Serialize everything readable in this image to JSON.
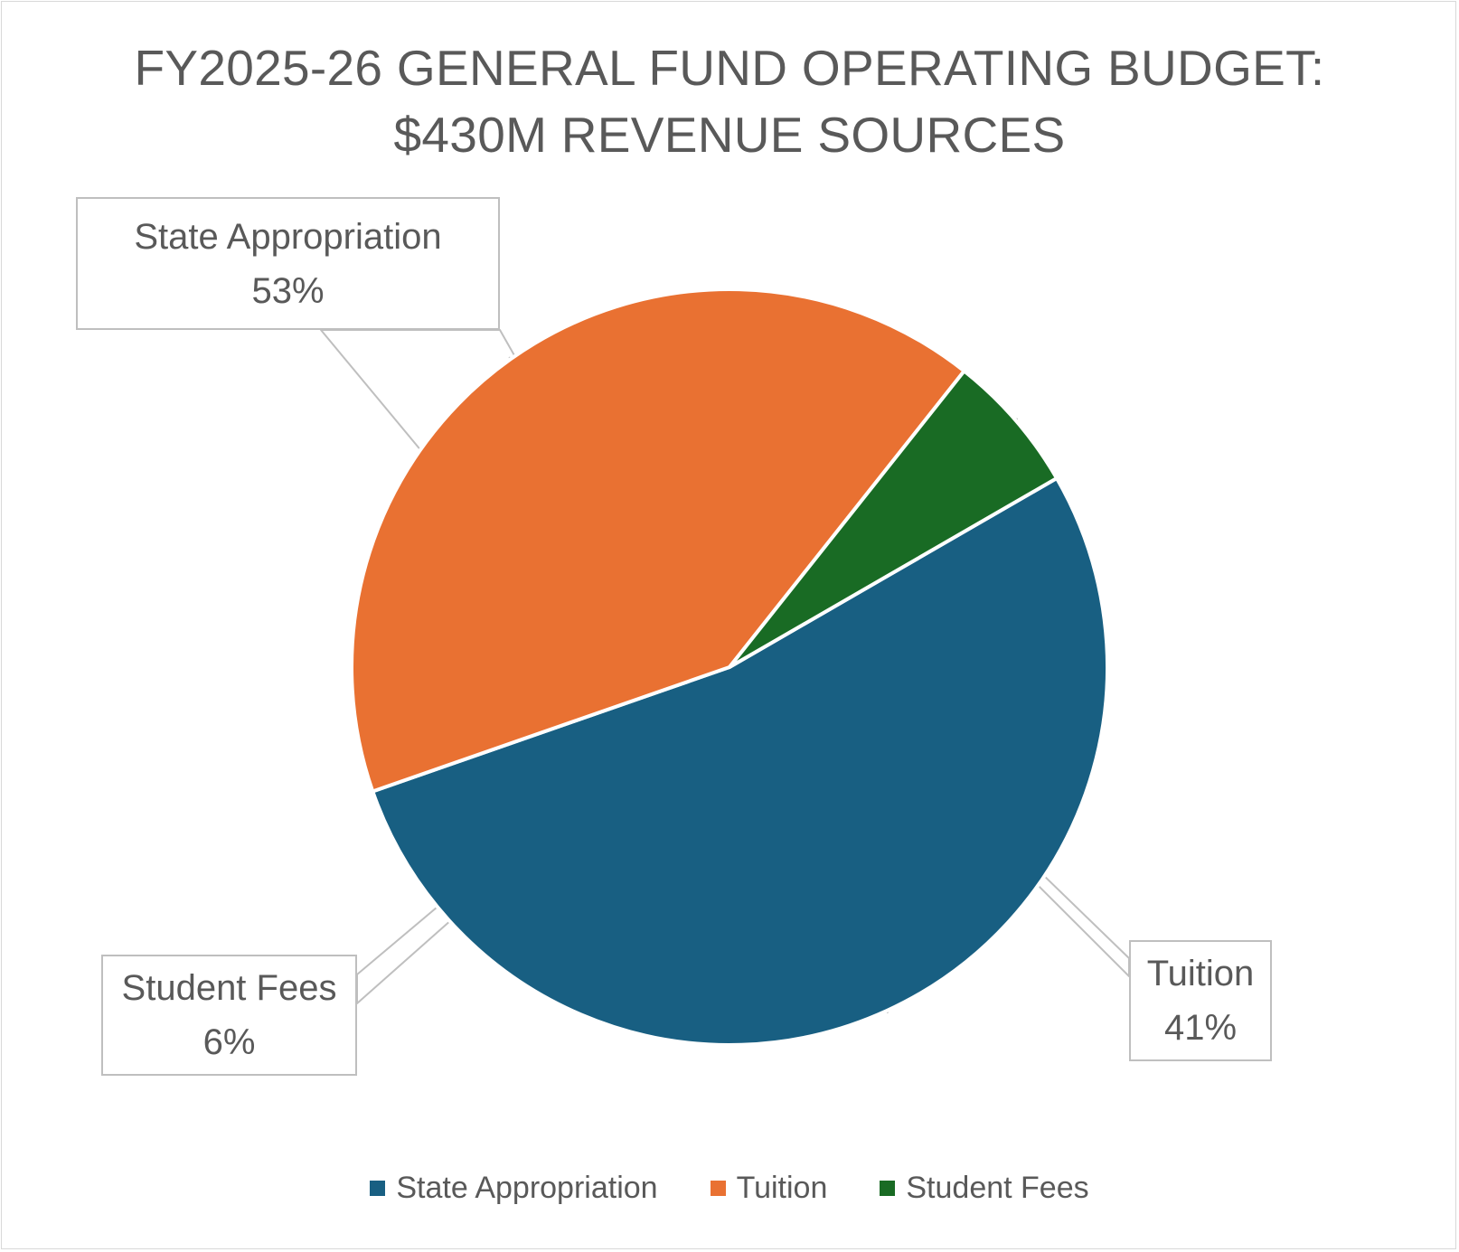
{
  "chart_data": {
    "type": "pie",
    "title": "FY2025-26 GENERAL FUND OPERATING BUDGET:",
    "subtitle": "$430M REVENUE SOURCES",
    "categories": [
      "State Appropriation",
      "Tuition",
      "Student Fees"
    ],
    "values": [
      53,
      41,
      6
    ],
    "value_labels": [
      "53%",
      "41%",
      "6%"
    ],
    "colors": [
      "#185F82",
      "#E97132",
      "#196B24"
    ],
    "legend_position": "bottom"
  }
}
